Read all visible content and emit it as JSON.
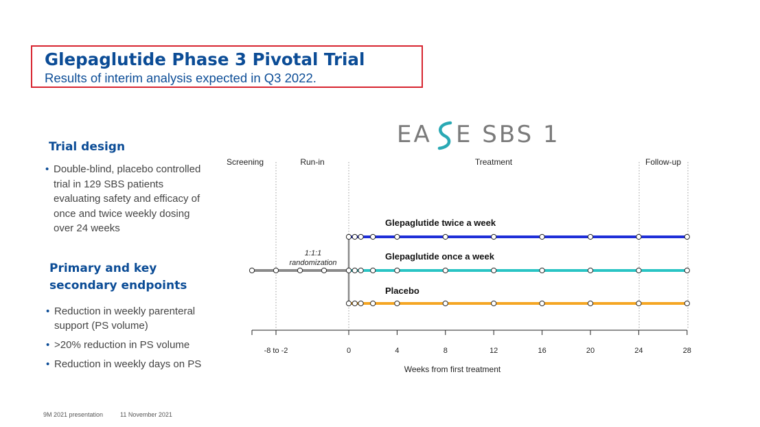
{
  "header": {
    "title": "Glepaglutide Phase 3 Pivotal Trial",
    "subtitle": "Results of interim analysis expected in Q3 2022."
  },
  "left": {
    "trial_design": {
      "heading": "Trial design",
      "bullets": [
        "Double-blind, placebo controlled trial in 129 SBS patients evaluating safety and efficacy of once and twice weekly dosing over 24 weeks"
      ]
    },
    "endpoints": {
      "heading": "Primary and key secondary endpoints",
      "bullets": [
        "Reduction in weekly parenteral support (PS volume)",
        ">20% reduction in PS volume",
        "Reduction in weekly days on PS"
      ]
    }
  },
  "logo": {
    "left_text": "EA",
    "right_text": "E SBS 1",
    "accent_color": "#2aa9b4",
    "text_color": "#7a7a7a"
  },
  "diagram": {
    "phases": [
      "Screening",
      "Run-in",
      "Treatment",
      "Follow-up"
    ],
    "randomization": [
      "1:1:1",
      "randomization"
    ],
    "arms": [
      {
        "label": "Glepaglutide twice a week",
        "color": "#1f2fd8"
      },
      {
        "label": "Glepaglutide once a week",
        "color": "#29c4c4"
      },
      {
        "label": "Placebo",
        "color": "#f5a623"
      }
    ],
    "run_in_color": "#8a8a8a",
    "ticks": [
      "-8 to -2",
      "0",
      "4",
      "8",
      "12",
      "16",
      "20",
      "24",
      "28"
    ],
    "xlabel": "Weeks from first treatment"
  },
  "footer": {
    "presentation": "9M 2021 presentation",
    "date": "11 November 2021"
  }
}
